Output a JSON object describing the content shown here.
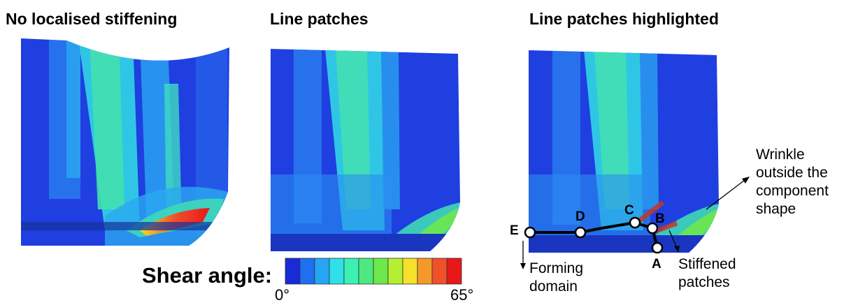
{
  "panels": [
    {
      "title": "No localised stiffening"
    },
    {
      "title": "Line patches"
    },
    {
      "title": "Line patches highlighted"
    }
  ],
  "points": [
    "A",
    "B",
    "C",
    "D",
    "E"
  ],
  "annotations": {
    "wrinkle": [
      "Wrinkle",
      "outside the",
      "component",
      "shape"
    ],
    "stiffened": [
      "Stiffened",
      "patches"
    ],
    "forming": [
      "Forming",
      "domain"
    ]
  },
  "legend": {
    "label": "Shear angle:",
    "min": "0°",
    "max": "65°",
    "colors": [
      "#1a2ad6",
      "#1f6ff0",
      "#27a5f5",
      "#2ee0e8",
      "#3ef0b4",
      "#4ee880",
      "#6ee84a",
      "#b4f032",
      "#f5e02a",
      "#f59a28",
      "#f0502a",
      "#e81818"
    ]
  }
}
